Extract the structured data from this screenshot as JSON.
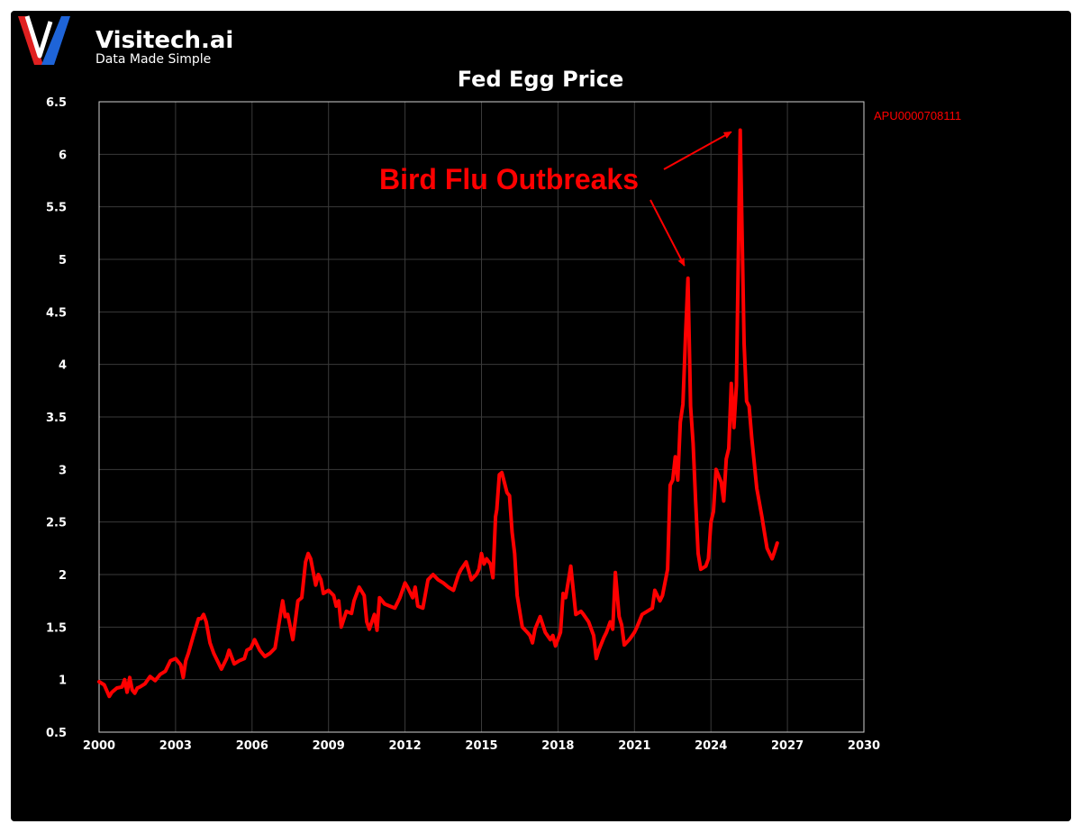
{
  "brand": {
    "name": "Visitech.ai",
    "tagline": "Data Made Simple"
  },
  "colors": {
    "background": "#000000",
    "series": "#ff0000",
    "axis": "#ffffff",
    "grid": "#3a3a3a"
  },
  "chart_data": {
    "type": "line",
    "title": "Fed Egg Price",
    "xlabel": "",
    "ylabel": "",
    "xlim": [
      2000,
      2030
    ],
    "ylim": [
      0.5,
      6.5
    ],
    "xticks": [
      "2000",
      "2003",
      "2006",
      "2009",
      "2012",
      "2015",
      "2018",
      "2021",
      "2024",
      "2027",
      "2030"
    ],
    "yticks": [
      "0.5",
      "1",
      "1.5",
      "2",
      "2.5",
      "3",
      "3.5",
      "4",
      "4.5",
      "5",
      "5.5",
      "6",
      "6.5"
    ],
    "grid": true,
    "legend": "top-right",
    "annotation": {
      "text": "Bird Flu Outbreaks",
      "targets": [
        [
          2023.1,
          4.82
        ],
        [
          2025.15,
          6.23
        ]
      ]
    },
    "series": [
      {
        "name": "APU0000708111",
        "color": "#ff0000",
        "x": [
          2000.0,
          2000.2,
          2000.4,
          2000.5,
          2000.7,
          2000.9,
          2001.0,
          2001.1,
          2001.2,
          2001.3,
          2001.4,
          2001.5,
          2001.6,
          2001.8,
          2002.0,
          2002.2,
          2002.4,
          2002.6,
          2002.8,
          2003.0,
          2003.2,
          2003.3,
          2003.4,
          2003.5,
          2003.7,
          2003.9,
          2004.0,
          2004.1,
          2004.2,
          2004.35,
          2004.5,
          2004.7,
          2004.8,
          2005.0,
          2005.1,
          2005.3,
          2005.5,
          2005.7,
          2005.8,
          2005.95,
          2006.1,
          2006.3,
          2006.5,
          2006.7,
          2006.9,
          2007.0,
          2007.2,
          2007.3,
          2007.4,
          2007.6,
          2007.8,
          2007.95,
          2008.1,
          2008.2,
          2008.3,
          2008.5,
          2008.6,
          2008.7,
          2008.8,
          2009.0,
          2009.2,
          2009.3,
          2009.4,
          2009.5,
          2009.7,
          2009.9,
          2010.0,
          2010.2,
          2010.4,
          2010.5,
          2010.6,
          2010.8,
          2010.9,
          2011.0,
          2011.2,
          2011.4,
          2011.6,
          2011.8,
          2012.0,
          2012.1,
          2012.3,
          2012.4,
          2012.5,
          2012.7,
          2012.9,
          2013.1,
          2013.3,
          2013.5,
          2013.7,
          2013.9,
          2014.1,
          2014.2,
          2014.4,
          2014.6,
          2014.8,
          2014.9,
          2015.0,
          2015.1,
          2015.2,
          2015.35,
          2015.45,
          2015.55,
          2015.6,
          2015.7,
          2015.8,
          2016.0,
          2016.1,
          2016.2,
          2016.3,
          2016.4,
          2016.6,
          2016.8,
          2016.9,
          2017.0,
          2017.1,
          2017.3,
          2017.5,
          2017.7,
          2017.8,
          2017.9,
          2018.1,
          2018.2,
          2018.3,
          2018.5,
          2018.7,
          2018.9,
          2019.0,
          2019.2,
          2019.4,
          2019.5,
          2019.6,
          2019.8,
          2019.9,
          2020.05,
          2020.15,
          2020.25,
          2020.4,
          2020.5,
          2020.6,
          2020.8,
          2021.0,
          2021.1,
          2021.3,
          2021.5,
          2021.7,
          2021.8,
          2022.0,
          2022.1,
          2022.3,
          2022.4,
          2022.5,
          2022.6,
          2022.7,
          2022.8,
          2022.9,
          2023.0,
          2023.1,
          2023.2,
          2023.3,
          2023.4,
          2023.5,
          2023.6,
          2023.8,
          2023.9,
          2024.0,
          2024.1,
          2024.2,
          2024.4,
          2024.5,
          2024.6,
          2024.7,
          2024.8,
          2024.9,
          2025.0,
          2025.15,
          2025.3,
          2025.4,
          2025.5,
          2025.6,
          2025.8,
          2026.0,
          2026.1,
          2026.2,
          2026.3,
          2026.4,
          2026.5,
          2026.6
        ],
        "values": [
          0.98,
          0.95,
          0.84,
          0.88,
          0.92,
          0.93,
          1.0,
          0.88,
          1.02,
          0.9,
          0.87,
          0.92,
          0.93,
          0.96,
          1.03,
          0.99,
          1.05,
          1.08,
          1.18,
          1.2,
          1.14,
          1.02,
          1.18,
          1.25,
          1.42,
          1.58,
          1.58,
          1.62,
          1.55,
          1.35,
          1.25,
          1.15,
          1.1,
          1.2,
          1.28,
          1.15,
          1.18,
          1.2,
          1.28,
          1.3,
          1.38,
          1.28,
          1.22,
          1.25,
          1.3,
          1.45,
          1.75,
          1.6,
          1.62,
          1.38,
          1.75,
          1.78,
          2.12,
          2.2,
          2.15,
          1.9,
          2.0,
          1.95,
          1.82,
          1.85,
          1.8,
          1.7,
          1.75,
          1.5,
          1.65,
          1.63,
          1.75,
          1.88,
          1.8,
          1.55,
          1.48,
          1.62,
          1.47,
          1.78,
          1.72,
          1.7,
          1.68,
          1.78,
          1.92,
          1.88,
          1.78,
          1.88,
          1.7,
          1.68,
          1.95,
          2.0,
          1.95,
          1.92,
          1.88,
          1.85,
          2.0,
          2.05,
          2.12,
          1.95,
          2.0,
          2.05,
          2.2,
          2.1,
          2.15,
          2.1,
          1.97,
          2.55,
          2.62,
          2.95,
          2.97,
          2.78,
          2.75,
          2.4,
          2.2,
          1.8,
          1.5,
          1.45,
          1.42,
          1.35,
          1.48,
          1.6,
          1.45,
          1.38,
          1.42,
          1.32,
          1.45,
          1.82,
          1.78,
          2.08,
          1.62,
          1.65,
          1.62,
          1.55,
          1.42,
          1.2,
          1.28,
          1.4,
          1.45,
          1.55,
          1.48,
          2.02,
          1.6,
          1.52,
          1.33,
          1.38,
          1.45,
          1.5,
          1.62,
          1.65,
          1.68,
          1.85,
          1.75,
          1.8,
          2.05,
          2.85,
          2.9,
          3.12,
          2.9,
          3.45,
          3.62,
          4.25,
          4.82,
          3.6,
          3.25,
          2.7,
          2.2,
          2.05,
          2.08,
          2.15,
          2.5,
          2.6,
          3.0,
          2.88,
          2.7,
          3.1,
          3.2,
          3.82,
          3.4,
          3.8,
          6.23,
          4.2,
          3.65,
          3.6,
          3.3,
          2.82,
          2.55,
          2.4,
          2.25,
          2.2,
          2.15,
          2.22,
          2.3
        ]
      }
    ]
  }
}
